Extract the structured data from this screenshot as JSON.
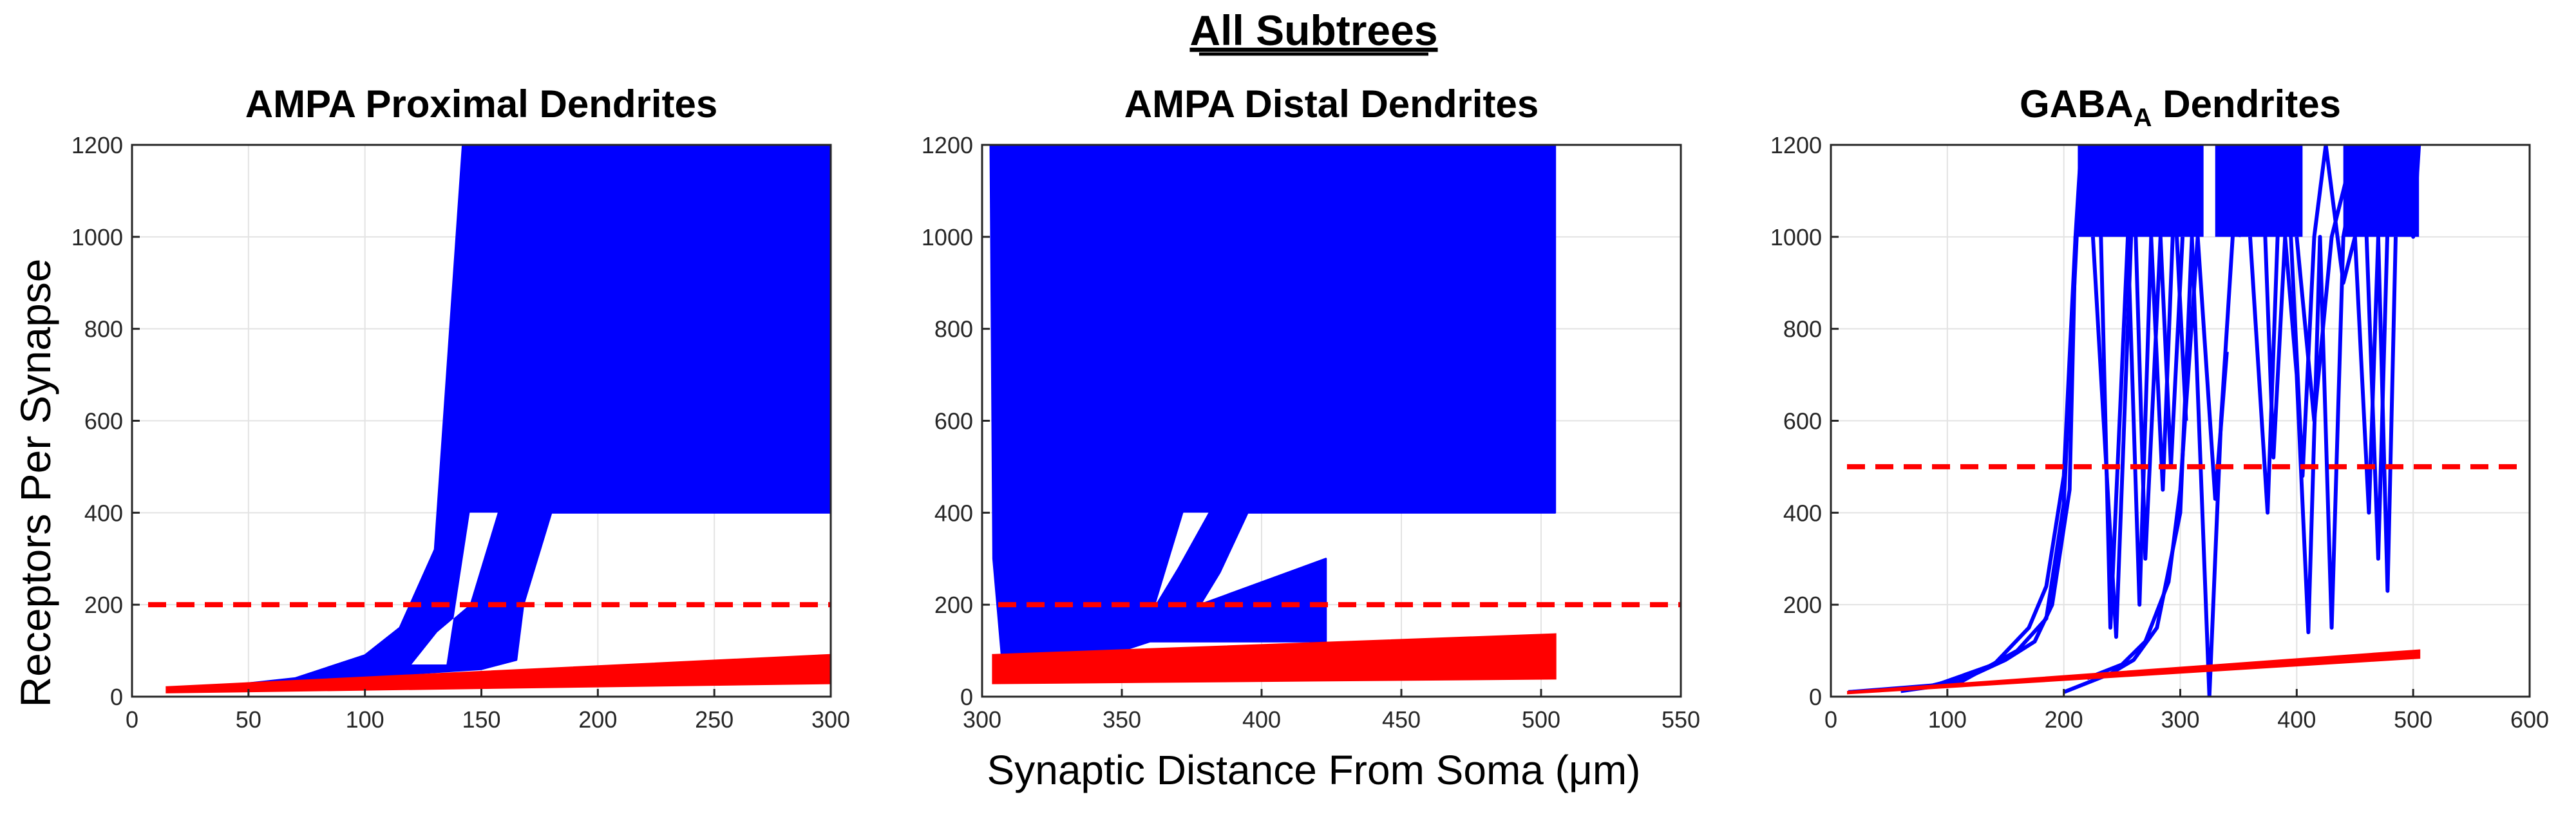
{
  "figure": {
    "suptitle": "All Subtrees",
    "ylabel": "Receptors Per Synapse",
    "xlabel": "Synaptic Distance From Soma (μm)"
  },
  "colors": {
    "blue_series": "#0000ff",
    "red_series": "#ff0000",
    "grid": "#e3e3e3",
    "axis": "#262626"
  },
  "chart_data": [
    {
      "type": "line",
      "title": "AMPA Proximal Dendrites",
      "xlim": [
        0,
        300
      ],
      "ylim": [
        0,
        1200
      ],
      "xticks": [
        0,
        50,
        100,
        150,
        200,
        250,
        300
      ],
      "yticks": [
        0,
        200,
        400,
        600,
        800,
        1000,
        1200
      ],
      "grid": true,
      "threshold": {
        "value": 200,
        "style": "dashed",
        "x_range": [
          0,
          300
        ]
      },
      "blue_band": {
        "upper": [
          [
            15,
            10
          ],
          [
            70,
            40
          ],
          [
            100,
            90
          ],
          [
            115,
            150
          ],
          [
            130,
            320
          ],
          [
            142,
            1200
          ],
          [
            300,
            1200
          ]
        ],
        "lower": [
          [
            300,
            400
          ],
          [
            180,
            400
          ],
          [
            168,
            200
          ],
          [
            165,
            80
          ],
          [
            150,
            60
          ],
          [
            120,
            50
          ],
          [
            90,
            40
          ],
          [
            40,
            20
          ],
          [
            15,
            10
          ]
        ]
      },
      "blue_gap": [
        [
          145,
          400
        ],
        [
          157,
          400
        ],
        [
          145,
          200
        ],
        [
          131,
          140
        ],
        [
          120,
          70
        ],
        [
          135,
          70
        ]
      ],
      "red_band": {
        "upper": [
          [
            15,
            20
          ],
          [
            300,
            90
          ]
        ],
        "lower": [
          [
            300,
            30
          ],
          [
            15,
            10
          ]
        ]
      }
    },
    {
      "type": "line",
      "title": "AMPA Distal Dendrites",
      "xlim": [
        300,
        550
      ],
      "ylim": [
        0,
        1200
      ],
      "xticks": [
        300,
        350,
        400,
        450,
        500,
        550
      ],
      "yticks": [
        0,
        200,
        400,
        600,
        800,
        1000,
        1200
      ],
      "grid": true,
      "threshold": {
        "value": 200,
        "style": "dashed",
        "x_range": [
          300,
          550
        ]
      },
      "blue_band": {
        "upper": [
          [
            303,
            1200
          ],
          [
            505,
            1200
          ],
          [
            505,
            400
          ],
          [
            395,
            400
          ],
          [
            385,
            270
          ],
          [
            378,
            200
          ],
          [
            423,
            300
          ],
          [
            423,
            120
          ],
          [
            360,
            120
          ],
          [
            350,
            100
          ],
          [
            307,
            90
          ],
          [
            304,
            300
          ]
        ],
        "lower": []
      },
      "blue_gap": [
        [
          372,
          400
        ],
        [
          381,
          400
        ],
        [
          370,
          280
        ],
        [
          362,
          200
        ]
      ],
      "red_band": {
        "upper": [
          [
            304,
            90
          ],
          [
            505,
            135
          ]
        ],
        "lower": [
          [
            505,
            40
          ],
          [
            304,
            30
          ]
        ]
      }
    },
    {
      "type": "line",
      "title": "GABA",
      "title_subscript": "A",
      "title_suffix": " Dendrites",
      "xlim": [
        0,
        600
      ],
      "ylim": [
        0,
        1200
      ],
      "xticks": [
        0,
        100,
        200,
        300,
        400,
        500,
        600
      ],
      "yticks": [
        0,
        200,
        400,
        600,
        800,
        1000,
        1200
      ],
      "grid": true,
      "threshold": {
        "value": 500,
        "style": "dashed",
        "x_range": [
          0,
          590
        ]
      },
      "blue_lines": [
        [
          [
            15,
            10
          ],
          [
            80,
            20
          ],
          [
            120,
            45
          ],
          [
            150,
            80
          ],
          [
            175,
            120
          ],
          [
            190,
            200
          ],
          [
            205,
            450
          ],
          [
            210,
            1000
          ],
          [
            215,
            1200
          ]
        ],
        [
          [
            15,
            10
          ],
          [
            90,
            25
          ],
          [
            140,
            70
          ],
          [
            170,
            150
          ],
          [
            185,
            240
          ],
          [
            200,
            480
          ],
          [
            210,
            1000
          ],
          [
            220,
            1200
          ]
        ],
        [
          [
            60,
            12
          ],
          [
            110,
            30
          ],
          [
            160,
            100
          ],
          [
            185,
            170
          ],
          [
            200,
            420
          ],
          [
            212,
            1050
          ]
        ],
        [
          [
            200,
            10
          ],
          [
            240,
            50
          ],
          [
            260,
            80
          ],
          [
            280,
            150
          ],
          [
            300,
            400
          ],
          [
            310,
            1000
          ],
          [
            325,
            0
          ],
          [
            335,
            600
          ],
          [
            345,
            1000
          ],
          [
            360,
            1200
          ]
        ],
        [
          [
            220,
            40
          ],
          [
            250,
            70
          ],
          [
            270,
            120
          ],
          [
            290,
            250
          ],
          [
            300,
            450
          ],
          [
            315,
            1000
          ],
          [
            330,
            430
          ],
          [
            340,
            750
          ]
        ],
        [
          [
            210,
            1000
          ],
          [
            230,
            1200
          ],
          [
            240,
            150
          ],
          [
            255,
            1000
          ],
          [
            265,
            200
          ],
          [
            275,
            1000
          ],
          [
            285,
            450
          ],
          [
            295,
            1100
          ],
          [
            305,
            600
          ]
        ],
        [
          [
            225,
            1000
          ],
          [
            245,
            130
          ],
          [
            260,
            1150
          ],
          [
            270,
            300
          ],
          [
            283,
            1000
          ],
          [
            292,
            500
          ],
          [
            302,
            1000
          ]
        ],
        [
          [
            350,
            1000
          ],
          [
            370,
            1200
          ],
          [
            380,
            520
          ],
          [
            390,
            1000
          ],
          [
            400,
            700
          ],
          [
            410,
            140
          ],
          [
            420,
            1000
          ],
          [
            430,
            150
          ],
          [
            440,
            1000
          ],
          [
            455,
            1200
          ]
        ],
        [
          [
            360,
            1000
          ],
          [
            375,
            400
          ],
          [
            385,
            1100
          ],
          [
            395,
            1000
          ],
          [
            405,
            480
          ],
          [
            415,
            1000
          ],
          [
            425,
            1200
          ],
          [
            440,
            900
          ],
          [
            450,
            1000
          ],
          [
            462,
            400
          ],
          [
            470,
            1000
          ],
          [
            478,
            230
          ],
          [
            485,
            1000
          ]
        ],
        [
          [
            400,
            1000
          ],
          [
            415,
            600
          ],
          [
            430,
            1000
          ],
          [
            445,
            1150
          ],
          [
            460,
            1000
          ],
          [
            470,
            300
          ],
          [
            480,
            1200
          ],
          [
            500,
            1000
          ],
          [
            505,
            1200
          ]
        ]
      ],
      "blue_blocks": [
        {
          "x": [
            212,
            320
          ],
          "y": [
            1000,
            1200
          ]
        },
        {
          "x": [
            330,
            405
          ],
          "y": [
            1000,
            1200
          ]
        },
        {
          "x": [
            440,
            505
          ],
          "y": [
            1000,
            1200
          ]
        }
      ],
      "red_band": {
        "upper": [
          [
            15,
            10
          ],
          [
            505,
            100
          ]
        ],
        "lower": [
          [
            505,
            85
          ],
          [
            15,
            8
          ]
        ]
      }
    }
  ]
}
